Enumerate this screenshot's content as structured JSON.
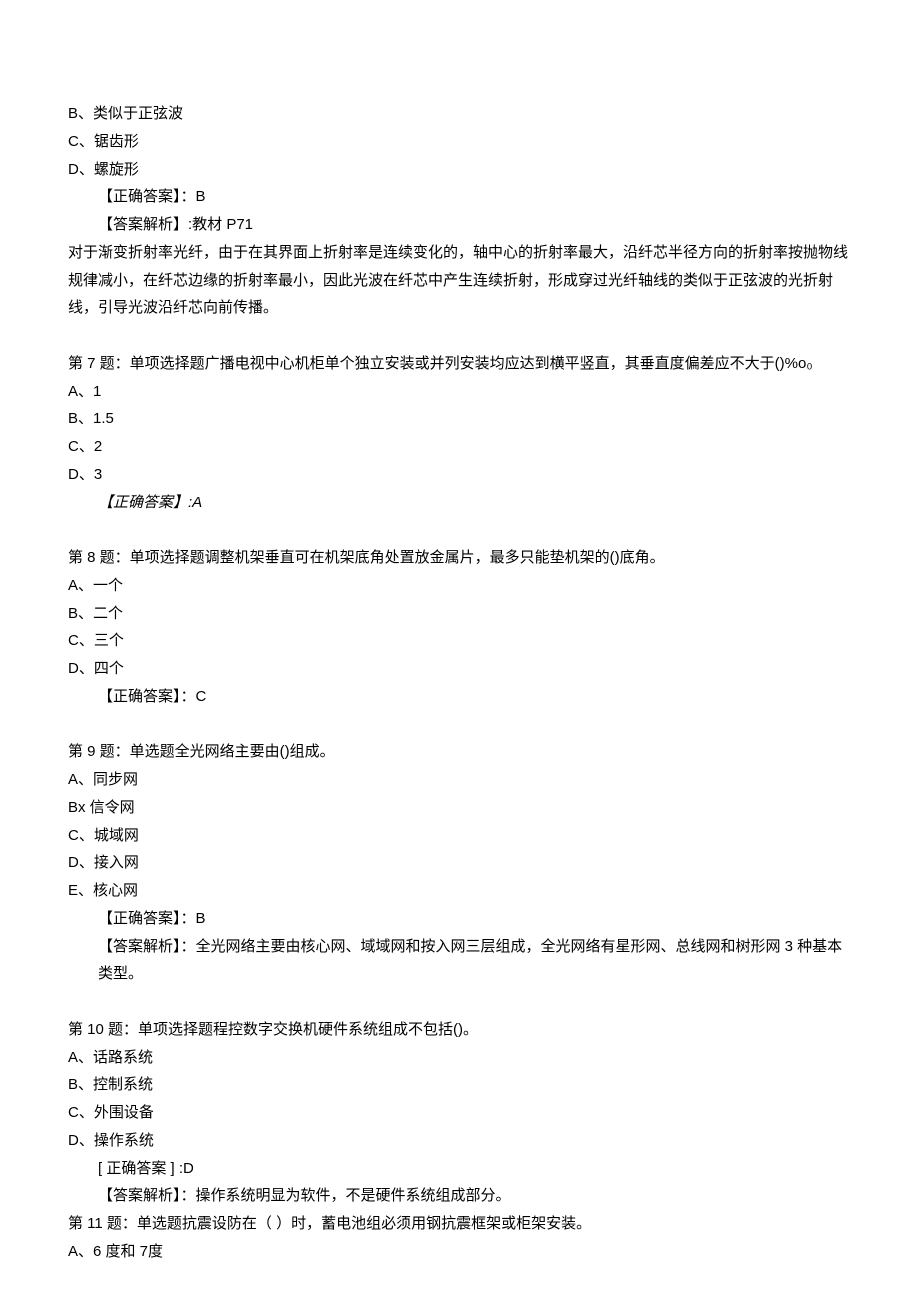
{
  "q6_tail": {
    "opt_b": "B、类似于正弦波",
    "opt_c": "C、锯齿形",
    "opt_d": "D、螺旋形",
    "answer_label": "【正确答案】：B",
    "analysis_label": "【答案解析】:教材 P71",
    "analysis_body": "对于渐变折射率光纤，由于在其界面上折射率是连续变化的，轴中心的折射率最大，沿纤芯半径方向的折射率按抛物线规律减小，在纤芯边缘的折射率最小，因此光波在纤芯中产生连续折射，形成穿过光纤轴线的类似于正弦波的光折射线，引导光波沿纤芯向前传播。"
  },
  "q7": {
    "stem": "第 7 题：单项选择题广播电视中心机柜单个独立安装或并列安装均应达到横平竖直，其垂直度偏差应不大于()%o₀",
    "opt_a": "A、1",
    "opt_b": "B、1.5",
    "opt_c": "C、2",
    "opt_d": "D、3",
    "answer_label": "【正确答案】:A"
  },
  "q8": {
    "stem": "第 8 题：单项选择题调整机架垂直可在机架底角处置放金属片，最多只能垫机架的()底角。",
    "opt_a": "A、一个",
    "opt_b": "B、二个",
    "opt_c": "C、三个",
    "opt_d": "D、四个",
    "answer_label": "【正确答案】：C"
  },
  "q9": {
    "stem": "第 9 题：单选题全光网络主要由()组成。",
    "opt_a": "A、同步网",
    "opt_b": "Bx 信令网",
    "opt_c": "C、城域网",
    "opt_d": "D、接入网",
    "opt_e": "E、核心网",
    "answer_label": "【正确答案】：B",
    "analysis": "【答案解析】：全光网络主要由核心网、域域网和按入网三层组成，全光网络有星形网、总线网和树形网 3 种基本类型。"
  },
  "q10": {
    "stem": "第 10 题：单项选择题程控数字交换机硬件系统组成不包括()。",
    "opt_a": "A、话路系统",
    "opt_b": "B、控制系统",
    "opt_c": "C、外围设备",
    "opt_d": "D、操作系统",
    "answer_label": "[ 正确答案 ] :D",
    "analysis": "【答案解析】：操作系统明显为软件，不是硬件系统组成部分。"
  },
  "q11": {
    "stem": "第 11 题：单选题抗震设防在（ ）时，蓄电池组必须用钢抗震框架或柜架安装。",
    "opt_a": "A、6 度和 7度"
  }
}
